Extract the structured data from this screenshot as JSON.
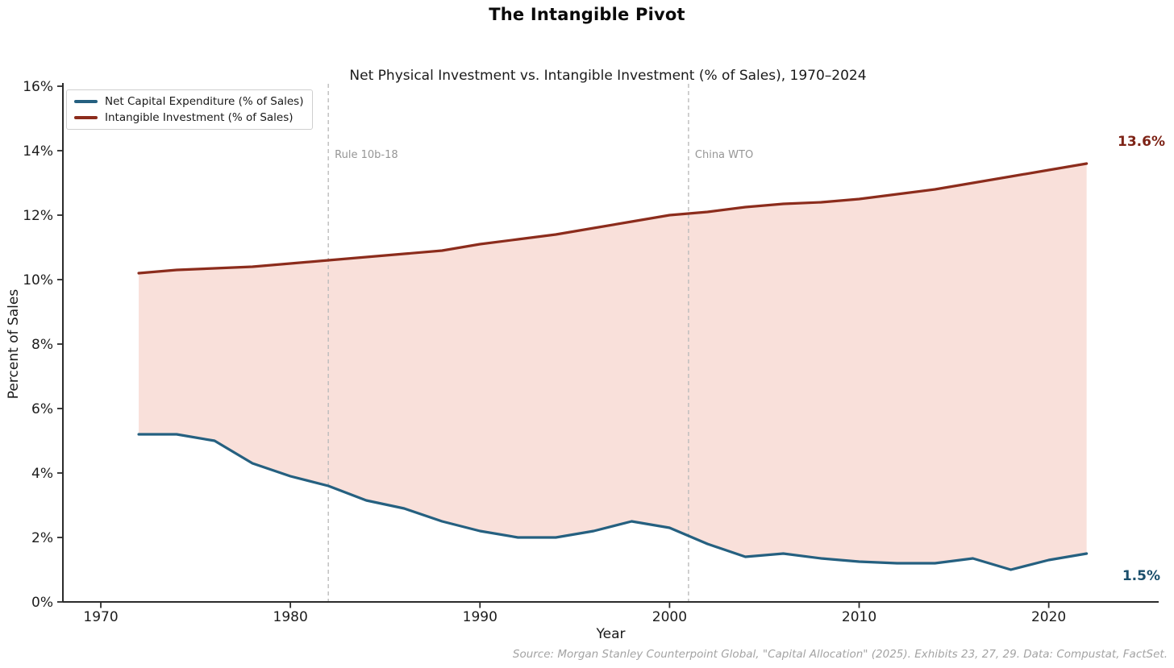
{
  "chart_data": {
    "type": "line",
    "title": "The Intangible Pivot",
    "subtitle": "Net Physical Investment vs. Intangible Investment (% of Sales), 1970–2024",
    "xlabel": "Year",
    "ylabel": "Percent of Sales",
    "x": [
      1972,
      1974,
      1976,
      1978,
      1980,
      1982,
      1984,
      1986,
      1988,
      1990,
      1992,
      1994,
      1996,
      1998,
      2000,
      2002,
      2004,
      2006,
      2008,
      2010,
      2012,
      2014,
      2016,
      2018,
      2020,
      2022
    ],
    "series": [
      {
        "name": "Net Capital Expenditure (% of Sales)",
        "color": "#256080",
        "end_label": "1.5%",
        "end_label_color": "#1a4e6b",
        "values": [
          5.2,
          5.2,
          5.0,
          4.3,
          3.9,
          3.6,
          3.15,
          2.9,
          2.5,
          2.2,
          2.0,
          2.0,
          2.2,
          2.5,
          2.3,
          1.8,
          1.4,
          1.5,
          1.35,
          1.25,
          1.2,
          1.2,
          1.35,
          1.0,
          1.3,
          1.5
        ]
      },
      {
        "name": "Intangible Investment (% of Sales)",
        "color": "#8c2c1c",
        "end_label": "13.6%",
        "end_label_color": "#7d2316",
        "values": [
          10.2,
          10.3,
          10.35,
          10.4,
          10.5,
          10.6,
          10.7,
          10.8,
          10.9,
          11.1,
          11.25,
          11.4,
          11.6,
          11.8,
          12.0,
          12.1,
          12.25,
          12.35,
          12.4,
          12.5,
          12.65,
          12.8,
          13.0,
          13.2,
          13.4,
          13.6
        ]
      }
    ],
    "fill_between": true,
    "fill_color": "#f9e0da",
    "annotations": [
      {
        "label": "Rule 10b-18",
        "year": 1982
      },
      {
        "label": "China WTO",
        "year": 2001
      }
    ],
    "annotation_line_color": "#bcbcbc",
    "annotation_text_color": "#969696",
    "x_ticks": [
      1970,
      1980,
      1990,
      2000,
      2010,
      2020
    ],
    "y_ticks": [
      0,
      2,
      4,
      6,
      8,
      10,
      12,
      14,
      16
    ],
    "y_tick_suffix": "%",
    "xlim": [
      1968,
      2025.8
    ],
    "ylim": [
      0,
      16
    ],
    "grid": false,
    "legend_position": "upper-left",
    "source": "Source: Morgan Stanley Counterpoint Global, \"Capital Allocation\" (2025). Exhibits 23, 27, 29. Data: Compustat, FactSet."
  }
}
